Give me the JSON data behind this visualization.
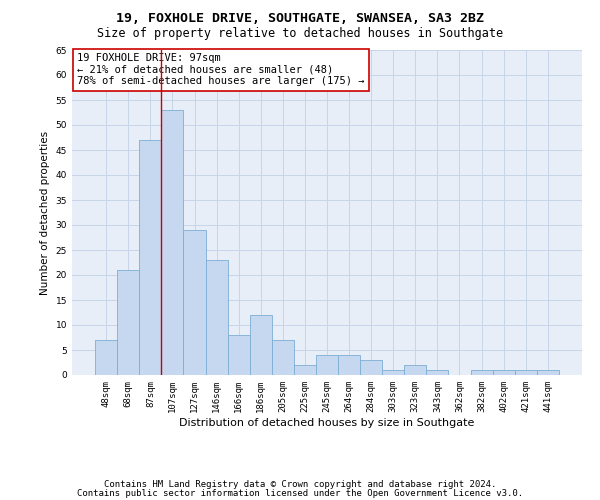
{
  "title1": "19, FOXHOLE DRIVE, SOUTHGATE, SWANSEA, SA3 2BZ",
  "title2": "Size of property relative to detached houses in Southgate",
  "xlabel": "Distribution of detached houses by size in Southgate",
  "ylabel": "Number of detached properties",
  "categories": [
    "48sqm",
    "68sqm",
    "87sqm",
    "107sqm",
    "127sqm",
    "146sqm",
    "166sqm",
    "186sqm",
    "205sqm",
    "225sqm",
    "245sqm",
    "264sqm",
    "284sqm",
    "303sqm",
    "323sqm",
    "343sqm",
    "362sqm",
    "382sqm",
    "402sqm",
    "421sqm",
    "441sqm"
  ],
  "values": [
    7,
    21,
    47,
    53,
    29,
    23,
    8,
    12,
    7,
    2,
    4,
    4,
    3,
    1,
    2,
    1,
    0,
    1,
    1,
    1,
    1
  ],
  "bar_color": "#c5d8f0",
  "bar_edge_color": "#7baed4",
  "vline_x_index": 2.5,
  "vline_color": "#cc0000",
  "annotation_text": "19 FOXHOLE DRIVE: 97sqm\n← 21% of detached houses are smaller (48)\n78% of semi-detached houses are larger (175) →",
  "annotation_box_color": "white",
  "annotation_box_edge": "#cc0000",
  "ylim": [
    0,
    65
  ],
  "yticks": [
    0,
    5,
    10,
    15,
    20,
    25,
    30,
    35,
    40,
    45,
    50,
    55,
    60,
    65
  ],
  "grid_color": "#c8d4e8",
  "bg_color": "#e8eef8",
  "footer1": "Contains HM Land Registry data © Crown copyright and database right 2024.",
  "footer2": "Contains public sector information licensed under the Open Government Licence v3.0.",
  "title_fontsize": 9.5,
  "subtitle_fontsize": 8.5,
  "annotation_fontsize": 7.5,
  "axis_label_fontsize": 7.5,
  "tick_fontsize": 6.5,
  "ylabel_fontsize": 7.5,
  "xlabel_fontsize": 8,
  "footer_fontsize": 6.5
}
